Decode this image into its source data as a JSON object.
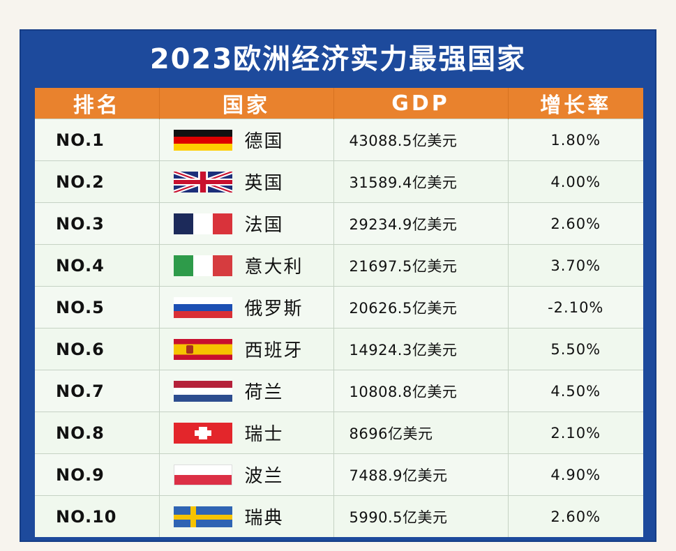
{
  "title": "2023欧洲经济实力最强国家",
  "headers": {
    "rank": "排名",
    "country": "国家",
    "gdp": "GDP",
    "growth": "增长率"
  },
  "rows": [
    {
      "rank": "NO.1",
      "country": "德国",
      "flag": "flag-germany",
      "gdp": "43088.5亿美元",
      "growth": "1.80%"
    },
    {
      "rank": "NO.2",
      "country": "英国",
      "flag": "flag-uk",
      "gdp": "31589.4亿美元",
      "growth": "4.00%"
    },
    {
      "rank": "NO.3",
      "country": "法国",
      "flag": "flag-france",
      "gdp": "29234.9亿美元",
      "growth": "2.60%"
    },
    {
      "rank": "NO.4",
      "country": "意大利",
      "flag": "flag-italy",
      "gdp": "21697.5亿美元",
      "growth": "3.70%"
    },
    {
      "rank": "NO.5",
      "country": "俄罗斯",
      "flag": "flag-russia",
      "gdp": "20626.5亿美元",
      "growth": "-2.10%"
    },
    {
      "rank": "NO.6",
      "country": "西班牙",
      "flag": "flag-spain",
      "gdp": "14924.3亿美元",
      "growth": "5.50%"
    },
    {
      "rank": "NO.7",
      "country": "荷兰",
      "flag": "flag-netherlands",
      "gdp": "10808.8亿美元",
      "growth": "4.50%"
    },
    {
      "rank": "NO.8",
      "country": "瑞士",
      "flag": "flag-switzerland",
      "gdp": "8696亿美元",
      "growth": "2.10%"
    },
    {
      "rank": "NO.9",
      "country": "波兰",
      "flag": "flag-poland",
      "gdp": "7488.9亿美元",
      "growth": "4.90%"
    },
    {
      "rank": "NO.10",
      "country": "瑞典",
      "flag": "flag-sweden",
      "gdp": "5990.5亿美元",
      "growth": "2.60%"
    }
  ],
  "colors": {
    "frame": "#1d4a9c",
    "header": "#e9822d",
    "row": "#f0f8ee"
  }
}
